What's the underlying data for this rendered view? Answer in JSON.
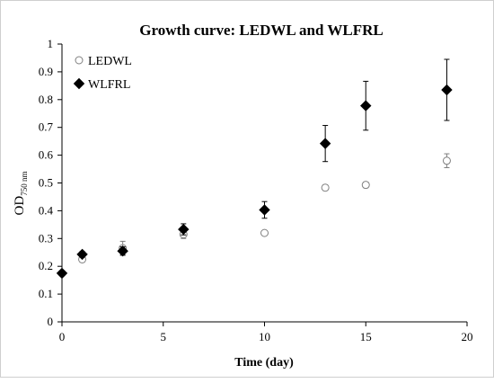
{
  "chart_data": {
    "type": "scatter",
    "title": "Growth curve: LEDWL and WLFRL",
    "xlabel": "Time (day)",
    "ylabel_main": "OD",
    "ylabel_sub": "750 nm",
    "xlim": [
      0,
      20
    ],
    "ylim": [
      0,
      1
    ],
    "xticks": [
      0,
      5,
      10,
      15,
      20
    ],
    "yticks": [
      0,
      0.1,
      0.2,
      0.3,
      0.4,
      0.5,
      0.6,
      0.7,
      0.8,
      0.9,
      1
    ],
    "grid": false,
    "legend_position": "top-left",
    "series": [
      {
        "name": "LEDWL",
        "marker": "open-circle",
        "color": "#7f7f7f",
        "points": [
          {
            "x": 0,
            "y": 0.175,
            "err": 0.006
          },
          {
            "x": 1,
            "y": 0.225,
            "err": 0.01
          },
          {
            "x": 3,
            "y": 0.265,
            "err": 0.025
          },
          {
            "x": 6,
            "y": 0.315,
            "err": 0.015
          },
          {
            "x": 10,
            "y": 0.32,
            "err": 0.008
          },
          {
            "x": 13,
            "y": 0.483,
            "err": 0.01
          },
          {
            "x": 15,
            "y": 0.493,
            "err": 0.01
          },
          {
            "x": 19,
            "y": 0.58,
            "err": 0.025
          }
        ]
      },
      {
        "name": "WLFRL",
        "marker": "filled-diamond",
        "color": "#000000",
        "points": [
          {
            "x": 0,
            "y": 0.175,
            "err": 0.005
          },
          {
            "x": 1,
            "y": 0.243,
            "err": 0.01
          },
          {
            "x": 3,
            "y": 0.255,
            "err": 0.015
          },
          {
            "x": 6,
            "y": 0.333,
            "err": 0.02
          },
          {
            "x": 10,
            "y": 0.403,
            "err": 0.03
          },
          {
            "x": 13,
            "y": 0.642,
            "err": 0.065
          },
          {
            "x": 15,
            "y": 0.778,
            "err": 0.088
          },
          {
            "x": 19,
            "y": 0.835,
            "err": 0.11
          }
        ]
      }
    ]
  }
}
